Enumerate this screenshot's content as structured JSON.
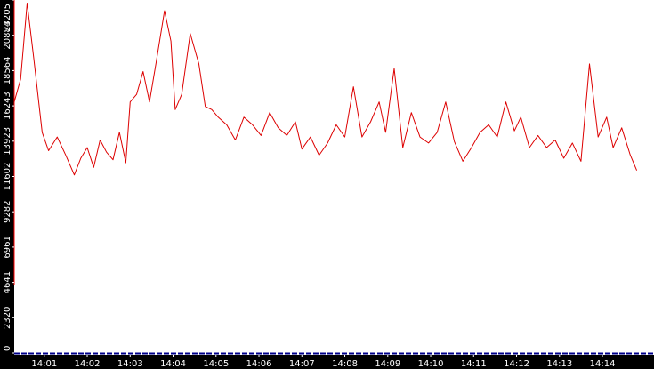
{
  "chart_data": {
    "type": "line",
    "title": "",
    "xlabel": "",
    "ylabel": "",
    "ylim": [
      0,
      23205
    ],
    "y_ticks": [
      "0",
      "2320",
      "4641",
      "6961",
      "9282",
      "11602",
      "13923",
      "16243",
      "18564",
      "20884",
      "23205"
    ],
    "x_ticks": [
      "14:01",
      "14:02",
      "14:03",
      "14:04",
      "14:05",
      "14:06",
      "14:07",
      "14:08",
      "14:09",
      "14:10",
      "14:11",
      "14:12",
      "14:13",
      "14:14"
    ],
    "x_range_minutes": [
      0.3,
      14.8
    ],
    "grid": false,
    "legend": "none",
    "colors": {
      "series": "#dd0000",
      "axis_bg": "#000000",
      "tick_text": "#ffffff",
      "baseline": "#00008b",
      "axis_accent": "#ff0000"
    },
    "series": [
      {
        "name": "",
        "x_minutes": [
          0.3,
          0.45,
          0.6,
          0.75,
          0.95,
          1.1,
          1.3,
          1.5,
          1.7,
          1.85,
          2.0,
          2.15,
          2.3,
          2.45,
          2.6,
          2.75,
          2.9,
          3.0,
          3.15,
          3.3,
          3.45,
          3.6,
          3.8,
          3.95,
          4.05,
          4.2,
          4.4,
          4.6,
          4.75,
          4.9,
          5.05,
          5.25,
          5.45,
          5.65,
          5.85,
          6.05,
          6.25,
          6.45,
          6.65,
          6.85,
          7.0,
          7.2,
          7.4,
          7.6,
          7.8,
          8.0,
          8.2,
          8.4,
          8.6,
          8.8,
          8.95,
          9.15,
          9.35,
          9.55,
          9.75,
          9.95,
          10.15,
          10.35,
          10.55,
          10.75,
          10.95,
          11.15,
          11.35,
          11.55,
          11.75,
          11.95,
          12.1,
          12.3,
          12.5,
          12.7,
          12.9,
          13.1,
          13.3,
          13.5,
          13.7,
          13.9,
          14.1,
          14.25,
          14.45,
          14.65,
          14.8
        ],
        "values": [
          16500,
          18000,
          23000,
          19500,
          14500,
          13300,
          14200,
          13000,
          11700,
          12800,
          13500,
          12200,
          14000,
          13200,
          12700,
          14500,
          12500,
          16500,
          17000,
          18500,
          16500,
          19000,
          22500,
          20500,
          16000,
          17000,
          21000,
          19000,
          16200,
          16000,
          15500,
          15000,
          14000,
          15500,
          15000,
          14300,
          15800,
          14800,
          14300,
          15200,
          13400,
          14200,
          13000,
          13800,
          15000,
          14200,
          17500,
          14200,
          15200,
          16500,
          14500,
          18700,
          13500,
          15800,
          14200,
          13800,
          14500,
          16500,
          13900,
          12600,
          13500,
          14500,
          15000,
          14200,
          16500,
          14600,
          15500,
          13500,
          14300,
          13500,
          14000,
          12800,
          13800,
          12600,
          19000,
          14200,
          15500,
          13500,
          14800,
          13000,
          12000
        ]
      }
    ]
  }
}
